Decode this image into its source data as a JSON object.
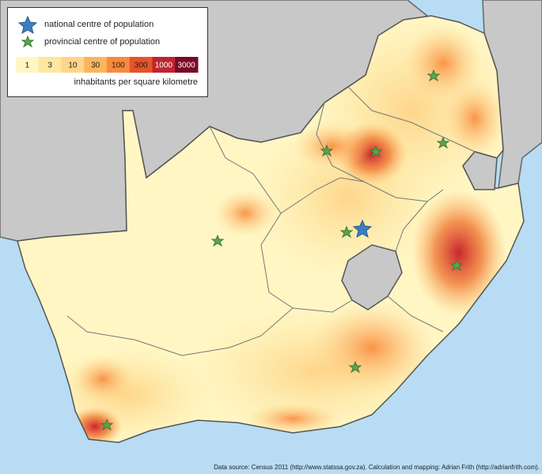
{
  "legend": {
    "national": "national centre of population",
    "provincial": "provincial centre of population",
    "scale_labels": [
      1,
      3,
      10,
      30,
      100,
      300,
      1000,
      3000
    ],
    "scale_colors": [
      "#fff6c4",
      "#fee8a0",
      "#fed58a",
      "#fdb45e",
      "#f98a3c",
      "#e5532a",
      "#bf2430",
      "#7a0a24"
    ],
    "unit": "inhabitants per square kilometre"
  },
  "source": "Data source: Census 2011 (http://www.statssa.gov.za). Calculation and mapping: Adrian Frith (http://adrianfrith.com)."
}
